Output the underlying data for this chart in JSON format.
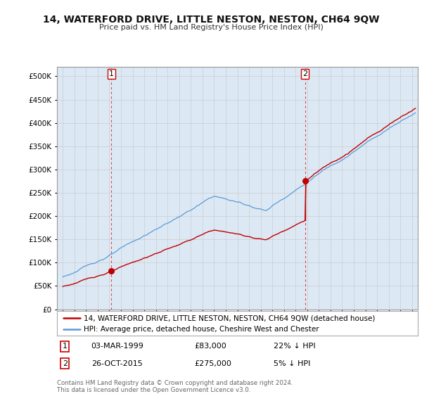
{
  "title": "14, WATERFORD DRIVE, LITTLE NESTON, NESTON, CH64 9QW",
  "subtitle": "Price paid vs. HM Land Registry's House Price Index (HPI)",
  "ytick_values": [
    0,
    50000,
    100000,
    150000,
    200000,
    250000,
    300000,
    350000,
    400000,
    450000,
    500000
  ],
  "ylim": [
    0,
    520000
  ],
  "hpi_color": "#5b9bd5",
  "hpi_fill_color": "#dce9f5",
  "price_color": "#c00000",
  "purchase1_year": 1999.17,
  "purchase1_price": 83000,
  "purchase2_year": 2015.82,
  "purchase2_price": 275000,
  "legend_price_label": "14, WATERFORD DRIVE, LITTLE NESTON, NESTON, CH64 9QW (detached house)",
  "legend_hpi_label": "HPI: Average price, detached house, Cheshire West and Chester",
  "annotation1_date": "03-MAR-1999",
  "annotation1_price": "£83,000",
  "annotation1_hpi": "22% ↓ HPI",
  "annotation2_date": "26-OCT-2015",
  "annotation2_price": "£275,000",
  "annotation2_hpi": "5% ↓ HPI",
  "grid_color": "#cccccc",
  "background_color": "#ffffff"
}
